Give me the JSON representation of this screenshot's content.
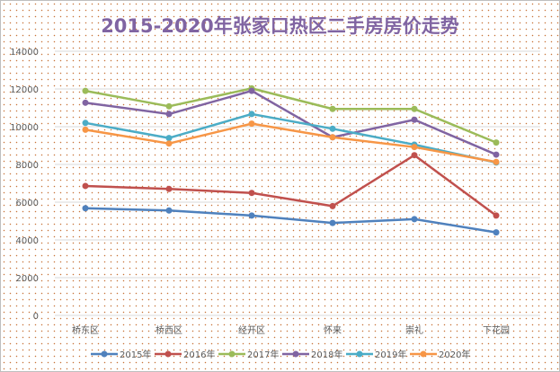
{
  "chart_data": {
    "type": "line",
    "title": "2015-2020年张家口热区二手房房价走势",
    "categories": [
      "桥东区",
      "桥西区",
      "经开区",
      "怀来",
      "崇礼",
      "下花园"
    ],
    "ylim": [
      0,
      14000
    ],
    "yticks": [
      "0",
      "2000",
      "4000",
      "6000",
      "8000",
      "10000",
      "12000",
      "14000"
    ],
    "grid": true,
    "legend": "bottom",
    "series": [
      {
        "name": "2015年",
        "color": "#4f81bd",
        "values": [
          5680,
          5560,
          5290,
          4900,
          5100,
          4400
        ]
      },
      {
        "name": "2016年",
        "color": "#c0504d",
        "values": [
          6860,
          6700,
          6490,
          5790,
          8490,
          5290
        ]
      },
      {
        "name": "2017年",
        "color": "#9bbb59",
        "values": [
          11900,
          11080,
          12030,
          10940,
          10940,
          9160
        ]
      },
      {
        "name": "2018年",
        "color": "#8064a2",
        "values": [
          11270,
          10670,
          11900,
          9440,
          10370,
          8520
        ]
      },
      {
        "name": "2019年",
        "color": "#4bacc6",
        "values": [
          10200,
          9400,
          10670,
          9890,
          9050,
          8100
        ]
      },
      {
        "name": "2020年",
        "color": "#f79646",
        "values": [
          9840,
          9110,
          10160,
          9440,
          8920,
          8130
        ]
      }
    ]
  }
}
